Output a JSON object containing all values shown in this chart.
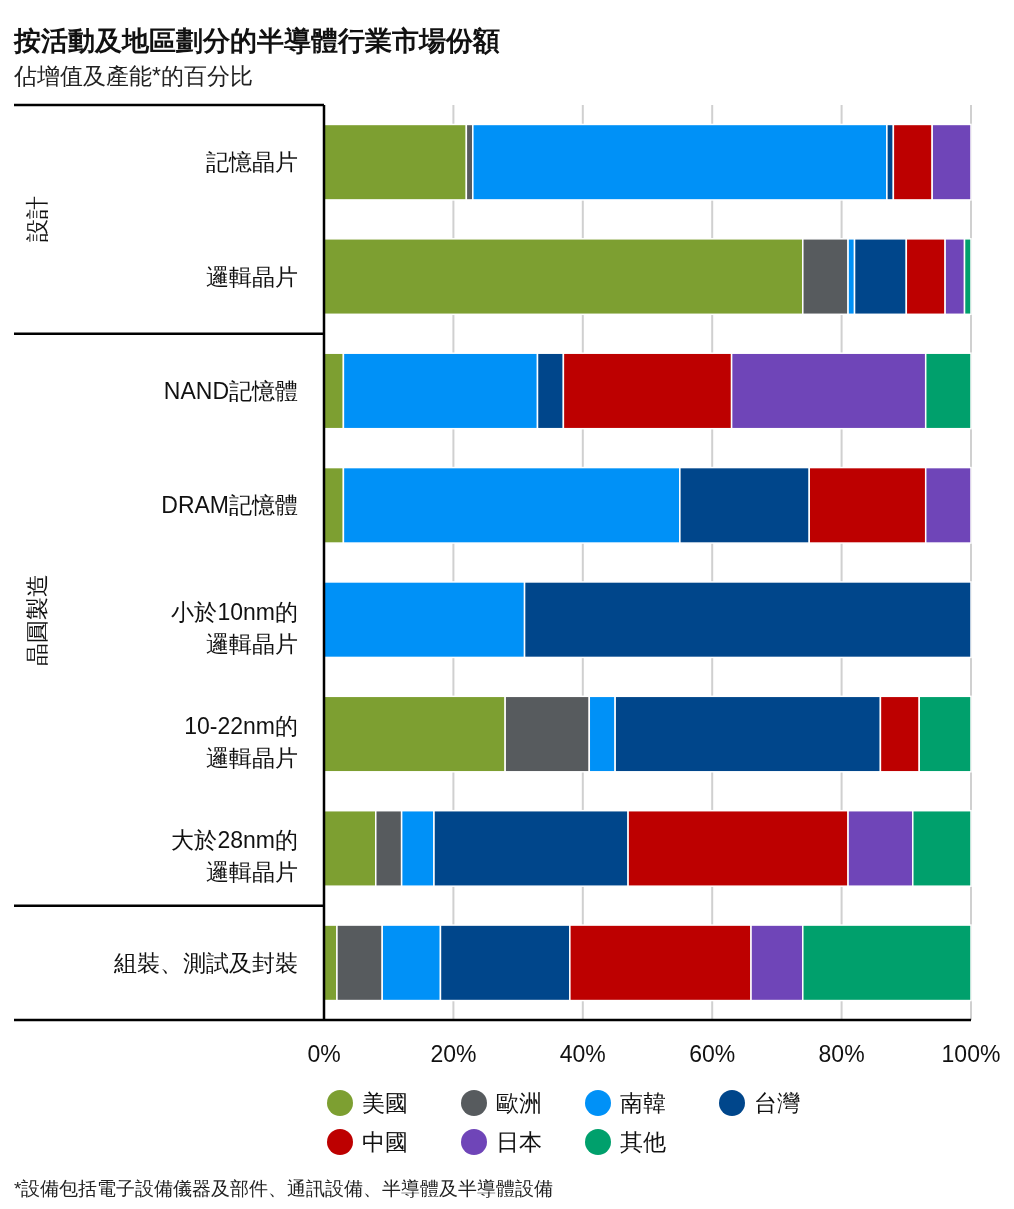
{
  "chart_data": {
    "type": "bar",
    "orientation": "horizontal",
    "stacked": true,
    "title": "按活動及地區劃分的半導體行業市場份額",
    "subtitle": "佔增值及產能*的百分比",
    "categories": [
      "記憶晶片",
      "邏輯晶片",
      "NAND記憶體",
      "DRAM記憶體",
      "小於10nm的邏輯晶片",
      "10-22nm的邏輯晶片",
      "大於28nm的邏輯晶片",
      "組裝、測試及封裝"
    ],
    "series": [
      {
        "name": "美國",
        "color": "#7d9f31",
        "values": [
          22,
          74,
          3,
          3,
          0,
          28,
          8,
          2
        ]
      },
      {
        "name": "歐洲",
        "color": "#575b5e",
        "values": [
          1,
          7,
          0,
          0,
          0,
          13,
          4,
          7
        ]
      },
      {
        "name": "南韓",
        "color": "#0091f7",
        "values": [
          64,
          1,
          30,
          52,
          31,
          4,
          5,
          9
        ]
      },
      {
        "name": "台灣",
        "color": "#00468b",
        "values": [
          1,
          8,
          4,
          20,
          69,
          41,
          30,
          20
        ]
      },
      {
        "name": "中國",
        "color": "#bd0000",
        "values": [
          6,
          6,
          26,
          18,
          0,
          6,
          34,
          28
        ]
      },
      {
        "name": "日本",
        "color": "#6f45b8",
        "values": [
          6,
          3,
          30,
          7,
          0,
          0,
          10,
          8
        ]
      },
      {
        "name": "其他",
        "color": "#00a06c",
        "values": [
          0,
          1,
          7,
          0,
          0,
          8,
          9,
          26
        ]
      }
    ],
    "xlim": [
      0,
      100
    ],
    "xticks": [
      {
        "value": 0,
        "label": "0%"
      },
      {
        "value": 20,
        "label": "20%"
      },
      {
        "value": 40,
        "label": "40%"
      },
      {
        "value": 60,
        "label": "60%"
      },
      {
        "value": 80,
        "label": "80%"
      },
      {
        "value": 100,
        "label": "100%"
      }
    ],
    "grid": "x",
    "legend": "bottom",
    "annotations": [
      "設計",
      "晶圓製造",
      "*設備包括電子設備儀器及部件、通訊設備、半導體及半導體設備"
    ]
  }
}
